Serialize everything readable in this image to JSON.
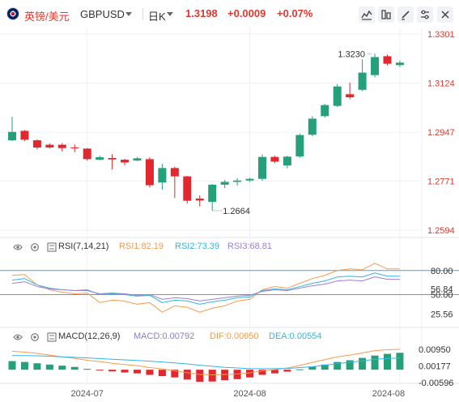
{
  "header": {
    "pair_name": "英镑/美元",
    "pair_code": "GBPUSD",
    "period": "日K",
    "price": "1.3198",
    "change": "+0.0009",
    "change_pct": "+0.07%"
  },
  "toolbar": {
    "icons": [
      "indicator-icon",
      "compare-icon",
      "draw-icon",
      "settings-icon",
      "close-icon"
    ]
  },
  "colors": {
    "up": "#26a07a",
    "down": "#e0282e",
    "accent": "#e0382e",
    "rsi1": "#f59c4d",
    "rsi2": "#33b5e5",
    "rsi3": "#9b7fd6",
    "macd_line": "#8e7cc3",
    "dif": "#f59c4d",
    "dea": "#33b5e5",
    "grid": "#eef0f4"
  },
  "chart_data": [
    {
      "type": "candlestick",
      "title": "",
      "ylim": [
        1.2594,
        1.3301
      ],
      "y_ticks": [
        "1.3301",
        "1.3124",
        "1.2947",
        "1.2771",
        "1.2594"
      ],
      "annotations": [
        {
          "label": "1.3230",
          "type": "high",
          "index": 29
        },
        {
          "label": "1.2664",
          "type": "low",
          "index": 16
        }
      ],
      "candles": [
        {
          "o": 1.2918,
          "c": 1.2948,
          "h": 1.3003,
          "l": 1.2915
        },
        {
          "o": 1.2952,
          "c": 1.292,
          "h": 1.2955,
          "l": 1.2915
        },
        {
          "o": 1.2918,
          "c": 1.2892,
          "h": 1.2921,
          "l": 1.2885
        },
        {
          "o": 1.2902,
          "c": 1.2892,
          "h": 1.2907,
          "l": 1.2888
        },
        {
          "o": 1.2902,
          "c": 1.289,
          "h": 1.2908,
          "l": 1.2878
        },
        {
          "o": 1.2892,
          "c": 1.289,
          "h": 1.2903,
          "l": 1.2875
        },
        {
          "o": 1.2888,
          "c": 1.285,
          "h": 1.289,
          "l": 1.2845
        },
        {
          "o": 1.2848,
          "c": 1.2857,
          "h": 1.2863,
          "l": 1.2845
        },
        {
          "o": 1.2854,
          "c": 1.2849,
          "h": 1.2868,
          "l": 1.2813
        },
        {
          "o": 1.2848,
          "c": 1.2838,
          "h": 1.2851,
          "l": 1.2828
        },
        {
          "o": 1.2845,
          "c": 1.2853,
          "h": 1.2858,
          "l": 1.2843
        },
        {
          "o": 1.285,
          "c": 1.2756,
          "h": 1.2857,
          "l": 1.2748
        },
        {
          "o": 1.2766,
          "c": 1.2818,
          "h": 1.2833,
          "l": 1.274
        },
        {
          "o": 1.2818,
          "c": 1.2788,
          "h": 1.2823,
          "l": 1.271
        },
        {
          "o": 1.2788,
          "c": 1.27,
          "h": 1.279,
          "l": 1.269
        },
        {
          "o": 1.2708,
          "c": 1.2701,
          "h": 1.272,
          "l": 1.268
        },
        {
          "o": 1.2696,
          "c": 1.2758,
          "h": 1.276,
          "l": 1.2664
        },
        {
          "o": 1.2758,
          "c": 1.2768,
          "h": 1.2775,
          "l": 1.2745
        },
        {
          "o": 1.2768,
          "c": 1.2773,
          "h": 1.2782,
          "l": 1.2755
        },
        {
          "o": 1.2773,
          "c": 1.2779,
          "h": 1.2783,
          "l": 1.2768
        },
        {
          "o": 1.2779,
          "c": 1.2858,
          "h": 1.2867,
          "l": 1.2772
        },
        {
          "o": 1.2858,
          "c": 1.2841,
          "h": 1.2863,
          "l": 1.2836
        },
        {
          "o": 1.2827,
          "c": 1.2859,
          "h": 1.2862,
          "l": 1.2817
        },
        {
          "o": 1.286,
          "c": 1.2937,
          "h": 1.2942,
          "l": 1.2855
        },
        {
          "o": 1.2938,
          "c": 1.2996,
          "h": 1.3005,
          "l": 1.2932
        },
        {
          "o": 1.3005,
          "c": 1.3045,
          "h": 1.305,
          "l": 1.3
        },
        {
          "o": 1.3042,
          "c": 1.3112,
          "h": 1.3121,
          "l": 1.3038
        },
        {
          "o": 1.3084,
          "c": 1.3073,
          "h": 1.3126,
          "l": 1.3066
        },
        {
          "o": 1.31,
          "c": 1.3162,
          "h": 1.321,
          "l": 1.3095
        },
        {
          "o": 1.3153,
          "c": 1.3218,
          "h": 1.323,
          "l": 1.3145
        },
        {
          "o": 1.3221,
          "c": 1.3194,
          "h": 1.3227,
          "l": 1.3188
        },
        {
          "o": 1.3189,
          "c": 1.3198,
          "h": 1.3206,
          "l": 1.3182
        }
      ]
    },
    {
      "type": "line",
      "title": "RSI(7,14,21)",
      "ylim": [
        10,
        100
      ],
      "y_ticks": [
        "80.00",
        "56.84",
        "25.56"
      ],
      "reference_lines": [
        {
          "value": 80,
          "label": "80.00"
        },
        {
          "value": 50,
          "label": "50.00"
        }
      ],
      "series": [
        {
          "name": "RSI1:82.19",
          "values": [
            74,
            75,
            62,
            56,
            53,
            51,
            52,
            40,
            43,
            42,
            38,
            40,
            28,
            36,
            34,
            28,
            33,
            36,
            42,
            44,
            56,
            60,
            58,
            64,
            70,
            74,
            80,
            82,
            81,
            89,
            82,
            82
          ]
        },
        {
          "name": "RSI2:73.39",
          "values": [
            68,
            70,
            62,
            58,
            56,
            55,
            56,
            50,
            51,
            50,
            48,
            49,
            40,
            43,
            42,
            38,
            41,
            43,
            46,
            47,
            55,
            57,
            56,
            60,
            64,
            67,
            72,
            73,
            72,
            77,
            73,
            73
          ]
        },
        {
          "name": "RSI3:68.81",
          "values": [
            64,
            66,
            60,
            57,
            56,
            55,
            55,
            51,
            52,
            51,
            49,
            50,
            44,
            46,
            45,
            42,
            44,
            46,
            48,
            49,
            54,
            56,
            55,
            58,
            61,
            63,
            67,
            68,
            67,
            72,
            69,
            69
          ]
        }
      ]
    },
    {
      "type": "bar",
      "title": "MACD(12,26,9)",
      "ylim": [
        -0.0075,
        0.0114
      ],
      "y_ticks": [
        "0.00950",
        "0.00177",
        "-0.00596"
      ],
      "series": [
        {
          "name": "MACD:0.00792",
          "values": [
            0.004,
            0.0036,
            0.003,
            0.0024,
            0.0019,
            0.0013,
            0.0004,
            -0.0002,
            -0.0008,
            -0.0013,
            -0.0017,
            -0.0024,
            -0.003,
            -0.0036,
            -0.0046,
            -0.0056,
            -0.0055,
            -0.0049,
            -0.0044,
            -0.0036,
            -0.0024,
            -0.0017,
            -0.0009,
            0.0002,
            0.0014,
            0.0024,
            0.0036,
            0.0044,
            0.0055,
            0.0066,
            0.0074,
            0.0079
          ]
        },
        {
          "name": "DIF:0.00950",
          "values": [
            0.0086,
            0.0082,
            0.0076,
            0.0068,
            0.006,
            0.0053,
            0.0044,
            0.0038,
            0.003,
            0.0024,
            0.0019,
            0.001,
            0.0004,
            -0.0005,
            -0.0014,
            -0.0022,
            -0.0024,
            -0.0022,
            -0.002,
            -0.0015,
            -0.0005,
            0.0,
            0.0008,
            0.002,
            0.0034,
            0.0047,
            0.006,
            0.0068,
            0.0078,
            0.0089,
            0.0093,
            0.0095
          ]
        },
        {
          "name": "DEA:0.00554",
          "values": [
            0.0066,
            0.0066,
            0.0065,
            0.0063,
            0.006,
            0.0058,
            0.0055,
            0.0052,
            0.0049,
            0.0046,
            0.0043,
            0.004,
            0.0036,
            0.0032,
            0.0027,
            0.0021,
            0.0016,
            0.0011,
            0.0008,
            0.0005,
            0.0005,
            0.0005,
            0.0006,
            0.001,
            0.0014,
            0.0021,
            0.0028,
            0.0035,
            0.0041,
            0.0049,
            0.0052,
            0.0055
          ]
        }
      ]
    }
  ],
  "x_axis": {
    "labels": [
      {
        "text": "2024-07",
        "index": 6
      },
      {
        "text": "2024-08",
        "index": 19
      },
      {
        "text": "2024-08",
        "index": 31
      }
    ]
  }
}
